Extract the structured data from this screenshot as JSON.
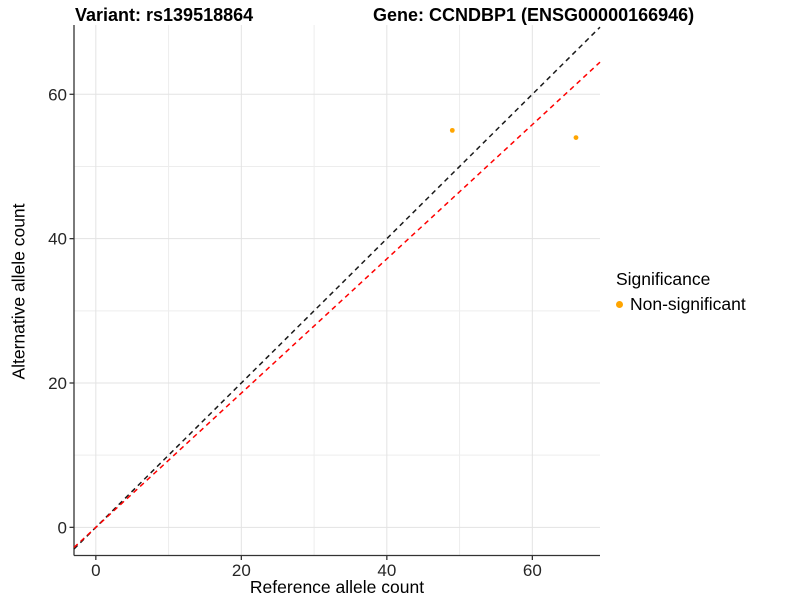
{
  "title": {
    "part1": "Variant: rs139518864",
    "part2": "Gene: CCNDBP1 (ENSG00000166946)"
  },
  "chart_data": {
    "type": "scatter",
    "title": "Variant: rs139518864   Gene: CCNDBP1 (ENSG00000166946)",
    "xlabel": "Reference allele count",
    "ylabel": "Alternative allele count",
    "xlim": [
      -3.0,
      69.3
    ],
    "ylim": [
      -3.9,
      69.6
    ],
    "xticks": [
      0,
      20,
      40,
      60
    ],
    "yticks": [
      0,
      20,
      40,
      60
    ],
    "xminor": [
      10,
      30,
      50
    ],
    "yminor": [
      10,
      30,
      50
    ],
    "grid": "on",
    "legend_position": "right",
    "series": [
      {
        "name": "Non-significant",
        "color": "#FFA500",
        "points": [
          {
            "x": 49,
            "y": 55
          },
          {
            "x": 66,
            "y": 54
          }
        ]
      }
    ],
    "lines": [
      {
        "name": "identity-line",
        "slope": 1.0,
        "intercept": 0,
        "color": "#1a1a1a",
        "style": "dashed"
      },
      {
        "name": "fit-line",
        "slope": 0.93,
        "intercept": 0,
        "color": "#ff0000",
        "style": "dashed"
      }
    ],
    "legend": {
      "title": "Significance",
      "items": [
        {
          "label": "Non-significant",
          "color": "#FFA500"
        }
      ]
    }
  },
  "colors": {
    "background": "#ffffff",
    "grid_major": "#e3e3e3",
    "grid_minor": "#ededed",
    "axis_line": "#333333",
    "tick_text": "#262626"
  }
}
